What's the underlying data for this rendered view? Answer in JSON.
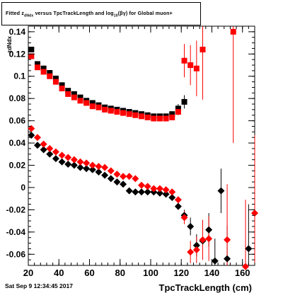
{
  "title": {
    "parts": [
      "Fitted z",
      "dNdx",
      " versus TpcTrackLength and log",
      "10",
      "(βγ) for Global muon+"
    ]
  },
  "xlabel": "TpcTrackLength (cm)",
  "ylabel": "zdNdx",
  "date": "Sat Sep  9 12:34:45 2017",
  "colors": {
    "black_series": "#000000",
    "red_series": "#ff0000",
    "background": "#ffffff"
  },
  "chart_data": {
    "type": "scatter",
    "xlim": [
      20,
      168
    ],
    "ylim": [
      -0.07,
      0.145
    ],
    "xticks": [
      20,
      40,
      60,
      80,
      100,
      120,
      140,
      160
    ],
    "xtick_labels": [
      "20",
      "40",
      "60",
      "80",
      "100",
      "120",
      "140",
      "160"
    ],
    "yticks": [
      -0.06,
      -0.04,
      -0.02,
      0,
      0.02,
      0.04,
      0.06,
      0.08,
      0.1,
      0.12,
      0.14
    ],
    "ytick_labels": [
      "-0.06",
      "-0.04",
      "-0.02",
      "0",
      "0.02",
      "0.04",
      "0.06",
      "0.08",
      "0.1",
      "0.12",
      "0.14"
    ],
    "series": [
      {
        "marker": "square",
        "color": "#000000",
        "points": [
          [
            22,
            0.124,
            0
          ],
          [
            26,
            0.111,
            0
          ],
          [
            30,
            0.107,
            0
          ],
          [
            34,
            0.103,
            0
          ],
          [
            38,
            0.098,
            0
          ],
          [
            42,
            0.092,
            0
          ],
          [
            46,
            0.087,
            0
          ],
          [
            50,
            0.084,
            0
          ],
          [
            54,
            0.081,
            0
          ],
          [
            58,
            0.078,
            0
          ],
          [
            62,
            0.076,
            0
          ],
          [
            66,
            0.074,
            0
          ],
          [
            70,
            0.072,
            0
          ],
          [
            74,
            0.071,
            0
          ],
          [
            78,
            0.07,
            0
          ],
          [
            82,
            0.069,
            0
          ],
          [
            86,
            0.068,
            0
          ],
          [
            90,
            0.067,
            0
          ],
          [
            94,
            0.066,
            0
          ],
          [
            98,
            0.065,
            0
          ],
          [
            102,
            0.064,
            0
          ],
          [
            106,
            0.064,
            0
          ],
          [
            110,
            0.064,
            0
          ],
          [
            114,
            0.066,
            0
          ],
          [
            118,
            0.071,
            0.004
          ],
          [
            122,
            0.077,
            0.006
          ]
        ]
      },
      {
        "marker": "square",
        "color": "#ff0000",
        "points": [
          [
            22,
            0.118,
            0
          ],
          [
            26,
            0.108,
            0
          ],
          [
            30,
            0.104,
            0
          ],
          [
            34,
            0.1,
            0
          ],
          [
            38,
            0.095,
            0
          ],
          [
            42,
            0.089,
            0
          ],
          [
            46,
            0.084,
            0
          ],
          [
            50,
            0.081,
            0
          ],
          [
            54,
            0.078,
            0
          ],
          [
            58,
            0.076,
            0
          ],
          [
            62,
            0.073,
            0
          ],
          [
            66,
            0.072,
            0
          ],
          [
            70,
            0.07,
            0
          ],
          [
            74,
            0.069,
            0
          ],
          [
            78,
            0.068,
            0
          ],
          [
            82,
            0.067,
            0
          ],
          [
            86,
            0.066,
            0
          ],
          [
            90,
            0.065,
            0
          ],
          [
            94,
            0.064,
            0
          ],
          [
            98,
            0.063,
            0
          ],
          [
            102,
            0.062,
            0
          ],
          [
            106,
            0.062,
            0
          ],
          [
            110,
            0.062,
            0
          ],
          [
            114,
            0.063,
            0
          ],
          [
            118,
            0.068,
            0.003
          ],
          [
            122,
            0.114,
            0.015
          ],
          [
            126,
            0.11,
            0.018
          ],
          [
            130,
            0.107,
            0.025
          ],
          [
            134,
            0.124,
            0.045
          ],
          [
            154,
            0.14,
            0.1
          ]
        ]
      },
      {
        "marker": "diamond",
        "color": "#000000",
        "points": [
          [
            22,
            0.047,
            0
          ],
          [
            26,
            0.038,
            0
          ],
          [
            30,
            0.034,
            0
          ],
          [
            34,
            0.03,
            0
          ],
          [
            38,
            0.026,
            0
          ],
          [
            42,
            0.023,
            0
          ],
          [
            46,
            0.021,
            0
          ],
          [
            50,
            0.02,
            0
          ],
          [
            54,
            0.018,
            0
          ],
          [
            58,
            0.017,
            0
          ],
          [
            62,
            0.016,
            0
          ],
          [
            66,
            0.014,
            0
          ],
          [
            70,
            0.011,
            0
          ],
          [
            74,
            0.008,
            0
          ],
          [
            78,
            0.005,
            0
          ],
          [
            82,
            0.003,
            0
          ],
          [
            86,
            -0.003,
            0
          ],
          [
            90,
            -0.004,
            0
          ],
          [
            94,
            -0.004,
            0
          ],
          [
            98,
            -0.004,
            0
          ],
          [
            102,
            -0.004,
            0
          ],
          [
            106,
            -0.005,
            0
          ],
          [
            110,
            -0.006,
            0
          ],
          [
            114,
            -0.009,
            0
          ],
          [
            118,
            -0.017,
            0.003
          ],
          [
            122,
            -0.025,
            0.005
          ],
          [
            126,
            -0.035,
            0.008
          ],
          [
            130,
            -0.052,
            0.01
          ],
          [
            134,
            -0.048,
            0.012
          ],
          [
            138,
            -0.038,
            0.015
          ],
          [
            142,
            -0.066,
            0.02
          ],
          [
            146,
            -0.003,
            0.02
          ],
          [
            150,
            -0.064,
            0.03
          ],
          [
            164,
            -0.055,
            0.04
          ]
        ]
      },
      {
        "marker": "diamond",
        "color": "#ff0000",
        "points": [
          [
            22,
            0.053,
            0
          ],
          [
            26,
            0.045,
            0
          ],
          [
            30,
            0.039,
            0
          ],
          [
            34,
            0.035,
            0
          ],
          [
            38,
            0.032,
            0
          ],
          [
            42,
            0.029,
            0
          ],
          [
            46,
            0.027,
            0
          ],
          [
            50,
            0.025,
            0
          ],
          [
            54,
            0.023,
            0
          ],
          [
            58,
            0.022,
            0
          ],
          [
            62,
            0.02,
            0
          ],
          [
            66,
            0.019,
            0
          ],
          [
            70,
            0.018,
            0
          ],
          [
            74,
            0.015,
            0
          ],
          [
            78,
            0.012,
            0
          ],
          [
            82,
            0.01,
            0
          ],
          [
            86,
            0.01,
            0
          ],
          [
            90,
            0.008,
            0
          ],
          [
            94,
            0.002,
            0
          ],
          [
            98,
            0.001,
            0
          ],
          [
            102,
            -0.001,
            0
          ],
          [
            106,
            -0.001,
            0
          ],
          [
            110,
            -0.002,
            0
          ],
          [
            114,
            -0.004,
            0
          ],
          [
            118,
            -0.011,
            0.003
          ],
          [
            122,
            -0.027,
            0.006
          ],
          [
            126,
            -0.058,
            0.01
          ],
          [
            130,
            -0.056,
            0.012
          ],
          [
            134,
            -0.047,
            0.018
          ],
          [
            138,
            -0.046,
            0.02
          ],
          [
            150,
            -0.047,
            0.05
          ],
          [
            162,
            -0.071,
            0.06
          ],
          [
            168,
            -0.023,
            0.07
          ]
        ]
      }
    ]
  }
}
